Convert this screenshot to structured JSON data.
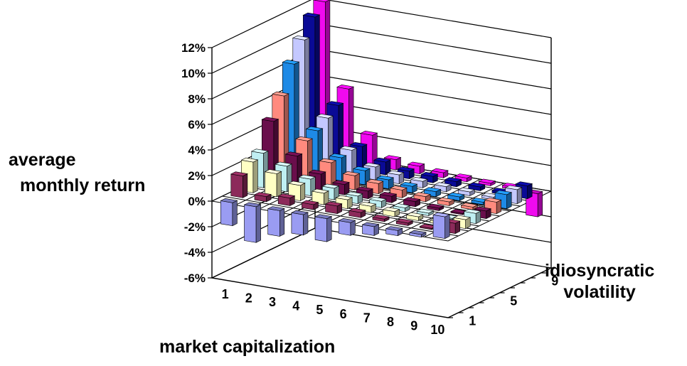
{
  "chart_data": {
    "type": "bar",
    "subtype": "3d-bar",
    "title": "",
    "xlabel": "market capitalization",
    "ylabel": [
      "average",
      "monthly return"
    ],
    "zlabel": [
      "idiosyncratic",
      "volatility"
    ],
    "ylim": [
      -0.06,
      0.12
    ],
    "yticks": [
      "-6%",
      "-4%",
      "-2%",
      "0%",
      "2%",
      "4%",
      "6%",
      "8%",
      "10%",
      "12%"
    ],
    "yticks_values": [
      -0.06,
      -0.04,
      -0.02,
      0,
      0.02,
      0.04,
      0.06,
      0.08,
      0.1,
      0.12
    ],
    "categories": [
      "1",
      "2",
      "3",
      "4",
      "5",
      "6",
      "7",
      "8",
      "9",
      "10"
    ],
    "z_ticks_shown": [
      "1",
      "5",
      "9"
    ],
    "grid": true,
    "series": [
      {
        "color": "#9a9cf2",
        "values": [
          -0.018,
          -0.028,
          -0.02,
          -0.016,
          -0.018,
          -0.01,
          -0.007,
          -0.004,
          -0.002,
          0.017
        ]
      },
      {
        "color": "#8c2a5a",
        "values": [
          0.017,
          0.004,
          0.006,
          0.004,
          0.006,
          0.004,
          0.002,
          0.002,
          0.001,
          0.008
        ]
      },
      {
        "color": "#ffffc4",
        "values": [
          0.024,
          0.018,
          0.012,
          0.009,
          0.007,
          0.005,
          0.004,
          0.003,
          0.002,
          0.007
        ]
      },
      {
        "color": "#bfeff2",
        "values": [
          0.027,
          0.02,
          0.013,
          0.009,
          0.006,
          0.005,
          0.003,
          0.002,
          0.001,
          0.008
        ]
      },
      {
        "color": "#6a0e4c",
        "values": [
          0.048,
          0.024,
          0.013,
          0.008,
          0.006,
          0.005,
          0.004,
          0.002,
          0.001,
          0.006
        ]
      },
      {
        "color": "#ff8a7e",
        "values": [
          0.064,
          0.032,
          0.018,
          0.011,
          0.008,
          0.006,
          0.004,
          0.003,
          0.002,
          0.009
        ]
      },
      {
        "color": "#1e8ae6",
        "values": [
          0.085,
          0.036,
          0.018,
          0.011,
          0.007,
          0.005,
          0.004,
          0.003,
          0.002,
          0.011
        ]
      },
      {
        "color": "#c4c8ff",
        "values": [
          0.1,
          0.042,
          0.02,
          0.01,
          0.007,
          0.005,
          0.004,
          0.003,
          0.002,
          0.011
        ]
      },
      {
        "color": "#0a0a96",
        "values": [
          0.114,
          0.048,
          0.019,
          0.01,
          0.006,
          0.005,
          0.004,
          0.003,
          0.002,
          0.01
        ]
      },
      {
        "color": "#f00aef",
        "values": [
          0.122,
          0.057,
          0.024,
          0.008,
          0.006,
          0.004,
          0.003,
          0.002,
          0.002,
          -0.018
        ]
      }
    ]
  }
}
